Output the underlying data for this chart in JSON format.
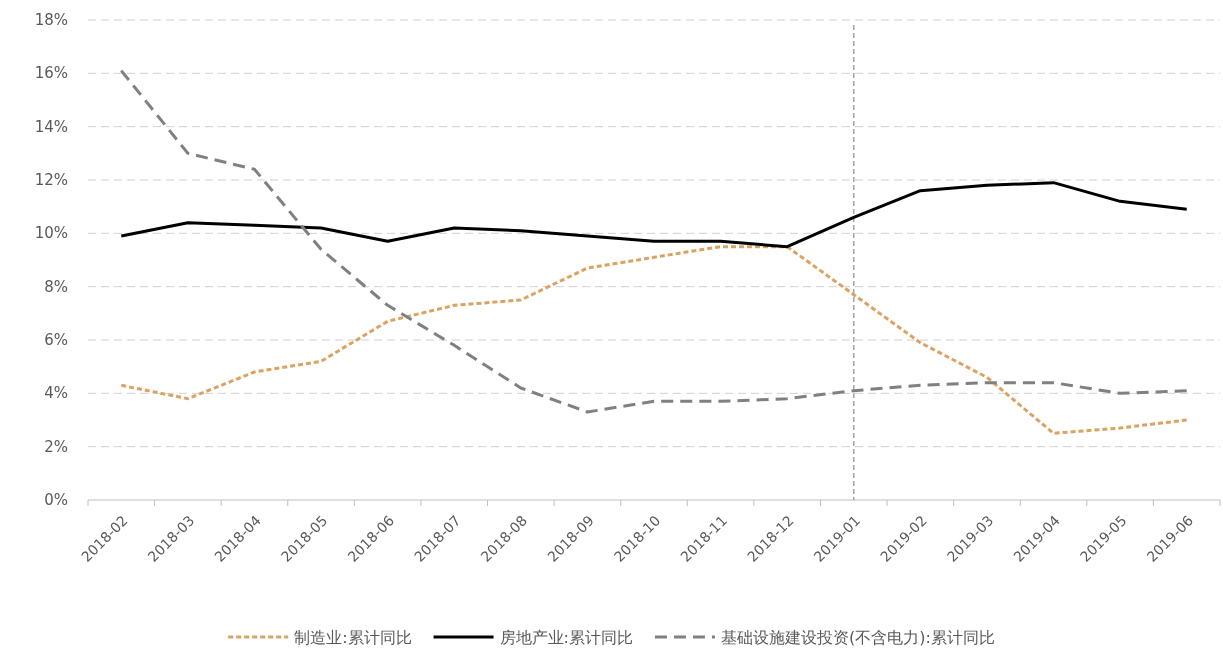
{
  "chart_data": {
    "type": "line",
    "categories": [
      "2018-02",
      "2018-03",
      "2018-04",
      "2018-05",
      "2018-06",
      "2018-07",
      "2018-08",
      "2018-09",
      "2018-10",
      "2018-11",
      "2018-12",
      "2019-01",
      "2019-02",
      "2019-03",
      "2019-04",
      "2019-05",
      "2019-06"
    ],
    "series": [
      {
        "name": "制造业:累计同比",
        "color": "#dca262",
        "line_style": "dotted",
        "values": [
          4.3,
          3.8,
          4.8,
          5.2,
          6.7,
          7.3,
          7.5,
          8.7,
          9.1,
          9.5,
          9.5,
          7.7,
          5.9,
          4.6,
          2.5,
          2.7,
          3.0
        ]
      },
      {
        "name": "房地产业:累计同比",
        "color": "#000000",
        "line_style": "solid",
        "values": [
          9.9,
          10.4,
          10.3,
          10.2,
          9.7,
          10.2,
          10.1,
          9.9,
          9.7,
          9.7,
          9.5,
          10.6,
          11.6,
          11.8,
          11.9,
          11.2,
          10.9
        ]
      },
      {
        "name": "基础设施建设投资(不含电力):累计同比",
        "color": "#808080",
        "line_style": "dashed",
        "values": [
          16.1,
          13.0,
          12.4,
          9.4,
          7.3,
          5.8,
          4.2,
          3.3,
          3.7,
          3.7,
          3.8,
          4.1,
          4.3,
          4.4,
          4.4,
          4.0,
          4.1
        ]
      }
    ],
    "ylim": [
      0,
      18
    ],
    "yticks": [
      {
        "value": 0,
        "label": "0%"
      },
      {
        "value": 2,
        "label": "2%"
      },
      {
        "value": 4,
        "label": "4%"
      },
      {
        "value": 6,
        "label": "6%"
      },
      {
        "value": 8,
        "label": "8%"
      },
      {
        "value": 10,
        "label": "10%"
      },
      {
        "value": 12,
        "label": "12%"
      },
      {
        "value": 14,
        "label": "14%"
      },
      {
        "value": 16,
        "label": "16%"
      },
      {
        "value": 18,
        "label": "18%"
      }
    ],
    "grid": "y",
    "legend": "bottom",
    "ref_lines": [
      {
        "axis": "x",
        "value": "2019-01",
        "color": "#a6a6a6",
        "line_style": "dotted"
      }
    ]
  }
}
